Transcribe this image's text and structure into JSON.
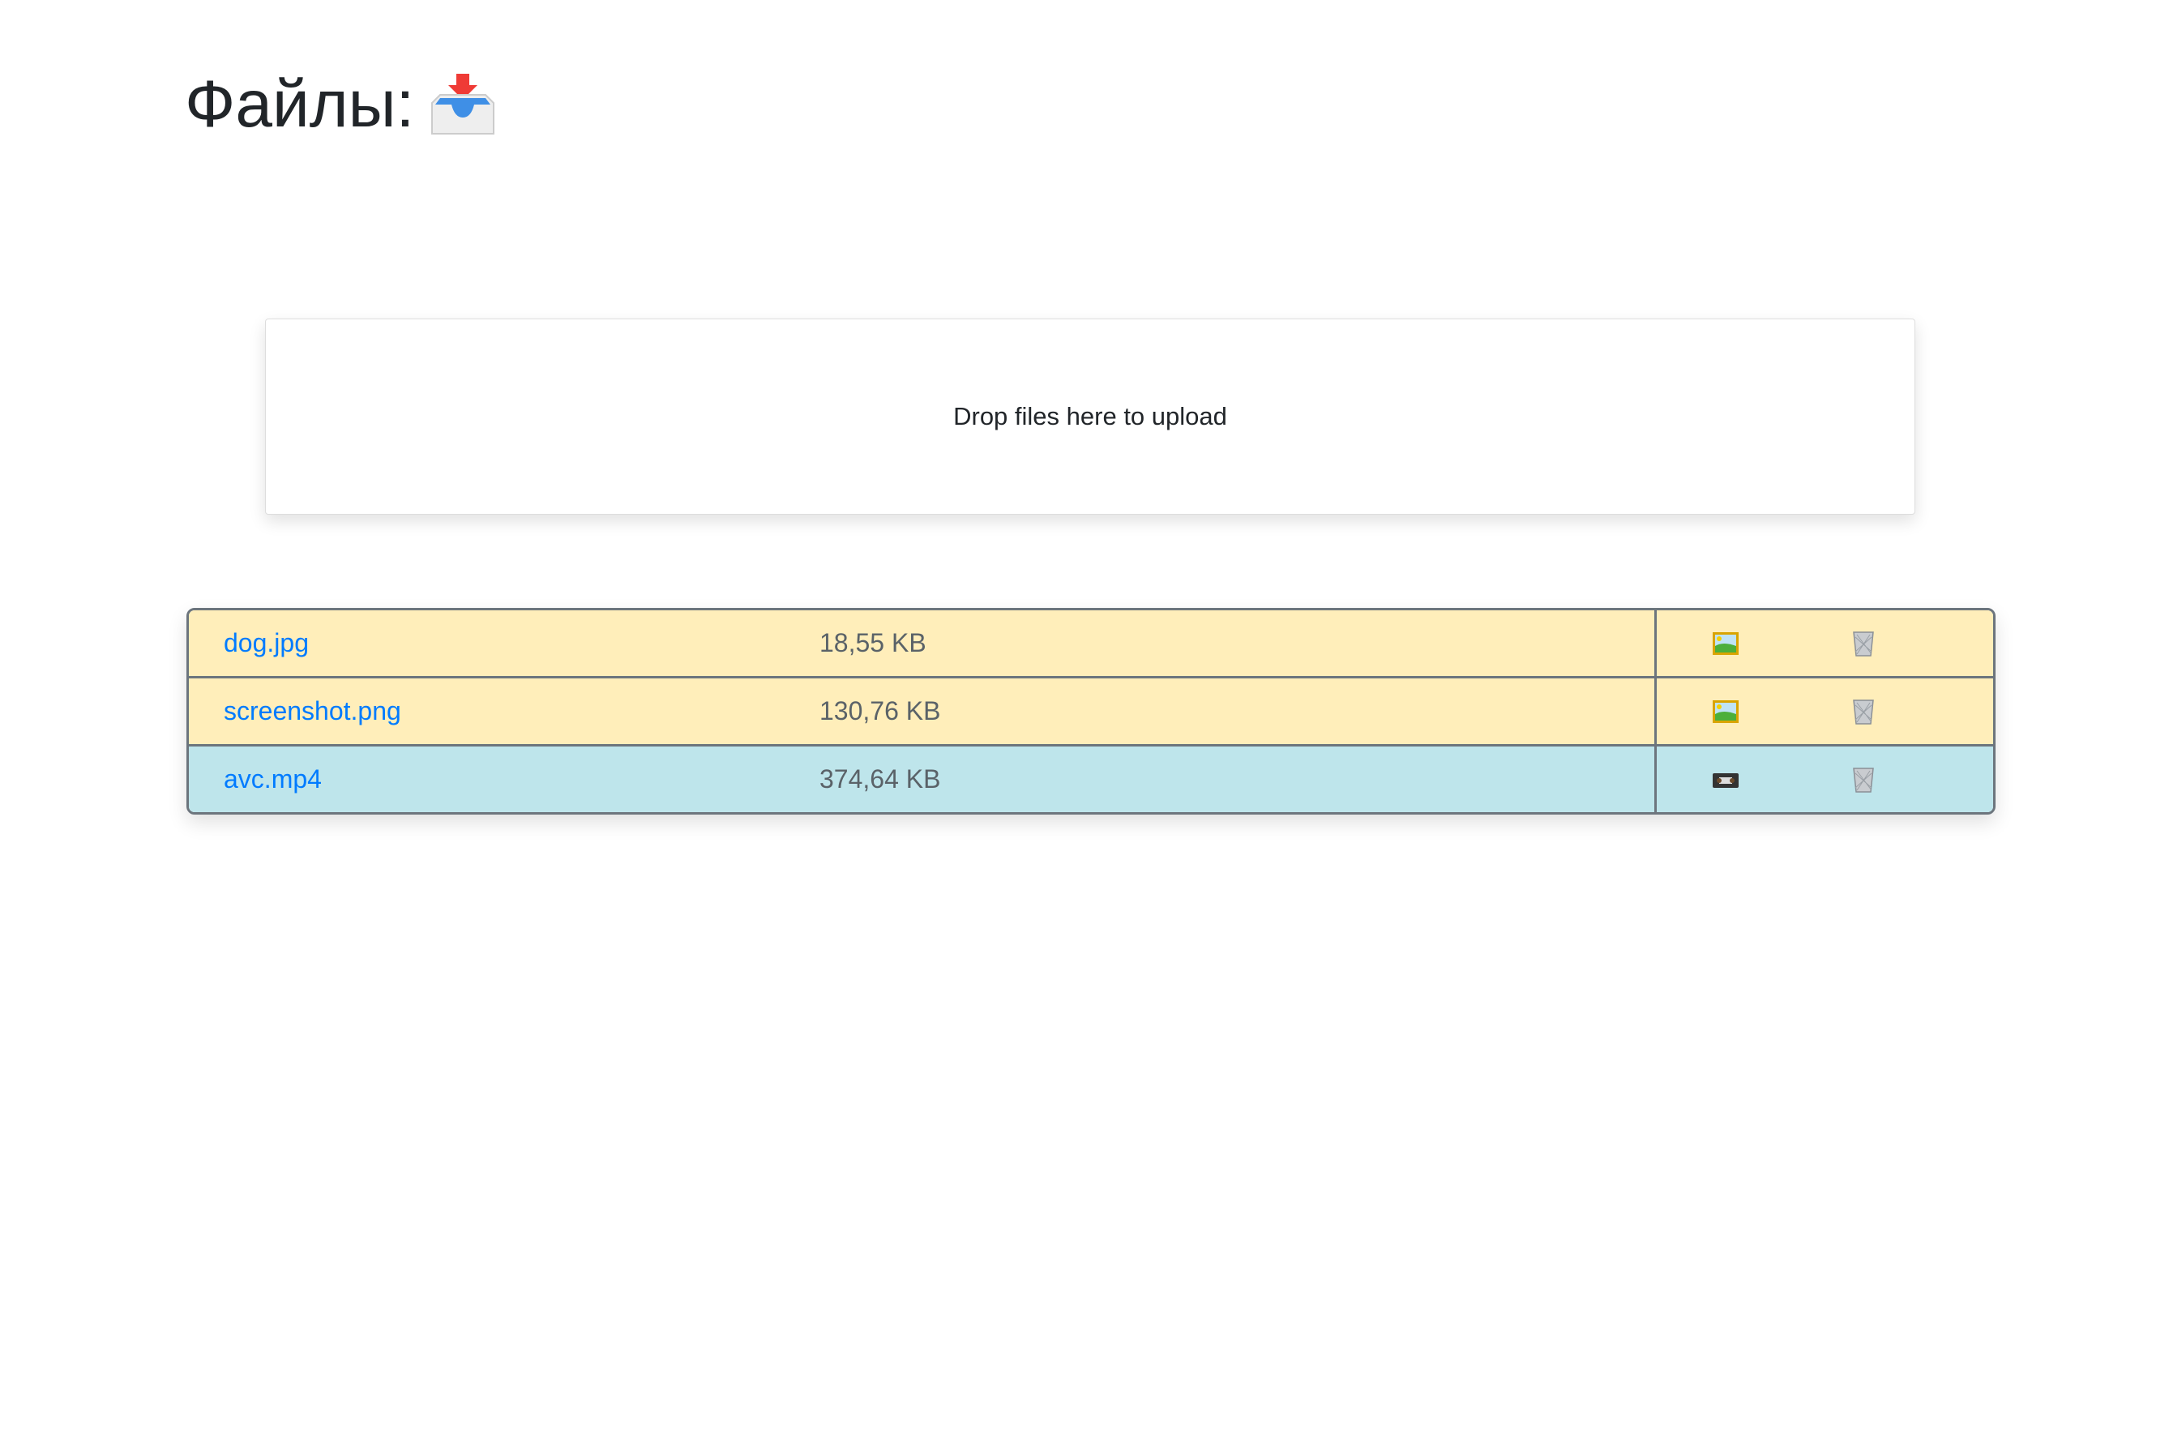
{
  "header": {
    "title": "Файлы:",
    "icon": "inbox-tray-icon"
  },
  "dropzone": {
    "label": "Drop files here to upload"
  },
  "files": [
    {
      "name": "dog.jpg",
      "size": "18,55 KB",
      "type": "image",
      "type_icon": "framed-picture-icon",
      "delete_icon": "wastebasket-icon"
    },
    {
      "name": "screenshot.png",
      "size": "130,76 KB",
      "type": "image",
      "type_icon": "framed-picture-icon",
      "delete_icon": "wastebasket-icon"
    },
    {
      "name": "avc.mp4",
      "size": "374,64 KB",
      "type": "video",
      "type_icon": "videocassette-icon",
      "delete_icon": "wastebasket-icon"
    }
  ],
  "colors": {
    "image_row": "#ffeeba",
    "video_row": "#bee5eb",
    "link": "#007bff",
    "border": "#6c757d"
  }
}
